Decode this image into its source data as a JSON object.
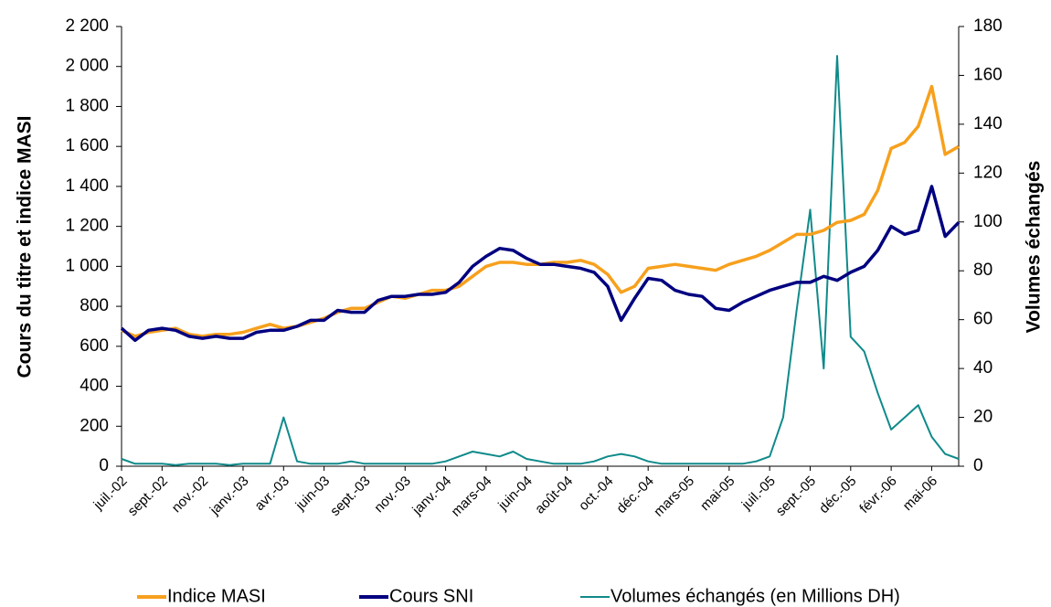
{
  "chart_data": {
    "type": "line",
    "y_label": "Cours du titre et indice MASI",
    "y2_label": "Volumes échangés",
    "categories": [
      "juil.-02",
      null,
      null,
      "sept.-02",
      null,
      null,
      "nov.-02",
      null,
      null,
      "janv.-03",
      null,
      null,
      "avr.-03",
      null,
      null,
      "juin-03",
      null,
      null,
      "sept.-03",
      null,
      null,
      "nov.-03",
      null,
      null,
      "janv.-04",
      null,
      null,
      "mars-04",
      null,
      null,
      "juin-04",
      null,
      null,
      "août-04",
      null,
      null,
      "oct.-04",
      null,
      null,
      "déc.-04",
      null,
      null,
      "mars-05",
      null,
      null,
      "mai-05",
      null,
      null,
      "juil.-05",
      null,
      null,
      "sept.-05",
      null,
      null,
      "déc.-05",
      null,
      null,
      "févr.-06",
      null,
      null,
      "mai-06",
      null,
      null
    ],
    "series": [
      {
        "name": "Indice MASI",
        "color": "#f7a01d",
        "values": [
          680,
          650,
          670,
          680,
          690,
          660,
          650,
          660,
          660,
          670,
          690,
          710,
          690,
          700,
          720,
          740,
          770,
          790,
          790,
          820,
          850,
          840,
          860,
          880,
          880,
          900,
          950,
          1000,
          1020,
          1020,
          1010,
          1010,
          1020,
          1020,
          1030,
          1010,
          960,
          870,
          900,
          990,
          1000,
          1010,
          1000,
          990,
          980,
          1010,
          1030,
          1050,
          1080,
          1120,
          1160,
          1160,
          1180,
          1220,
          1230,
          1260,
          1380,
          1590,
          1620,
          1700,
          1900,
          1560,
          1600
        ]
      },
      {
        "name": "Cours SNI",
        "color": "#000080",
        "values": [
          690,
          630,
          680,
          690,
          680,
          650,
          640,
          650,
          640,
          640,
          670,
          680,
          680,
          700,
          730,
          730,
          780,
          770,
          770,
          830,
          850,
          850,
          860,
          860,
          870,
          920,
          1000,
          1050,
          1090,
          1080,
          1040,
          1010,
          1010,
          1000,
          990,
          970,
          900,
          730,
          840,
          940,
          930,
          880,
          860,
          850,
          790,
          780,
          820,
          850,
          880,
          900,
          920,
          920,
          950,
          930,
          970,
          1000,
          1080,
          1200,
          1160,
          1180,
          1400,
          1150,
          1220
        ]
      },
      {
        "name": "Volumes échangés (en Millions DH)",
        "color": "#108a8a",
        "axis": "y2",
        "values": [
          3,
          1,
          1,
          1,
          0.5,
          1,
          1,
          1,
          0.5,
          1,
          1,
          1,
          20,
          2,
          1,
          1,
          1,
          2,
          1,
          1,
          1,
          1,
          1,
          1,
          2,
          4,
          6,
          5,
          4,
          6,
          3,
          2,
          1,
          1,
          1,
          2,
          4,
          5,
          4,
          2,
          1,
          1,
          1,
          1,
          1,
          1,
          1,
          2,
          4,
          20,
          64,
          105,
          40,
          168,
          53,
          47,
          30,
          15,
          20,
          25,
          12,
          5,
          3
        ]
      }
    ],
    "ylim": [
      0,
      2200
    ],
    "yticks": [
      0,
      200,
      400,
      600,
      800,
      {
        "value": 1000,
        "label": "1 000"
      },
      {
        "value": 1200,
        "label": "1 200"
      },
      {
        "value": 1400,
        "label": "1 400"
      },
      {
        "value": 1600,
        "label": "1 600"
      },
      {
        "value": 1800,
        "label": "1 800"
      },
      {
        "value": 2000,
        "label": "2 000"
      },
      {
        "value": 2200,
        "label": "2 200"
      }
    ],
    "y2lim": [
      0,
      180
    ],
    "y2ticks": [
      0,
      20,
      40,
      60,
      80,
      100,
      120,
      140,
      160,
      180
    ],
    "grid": false,
    "legend": "bottom"
  }
}
